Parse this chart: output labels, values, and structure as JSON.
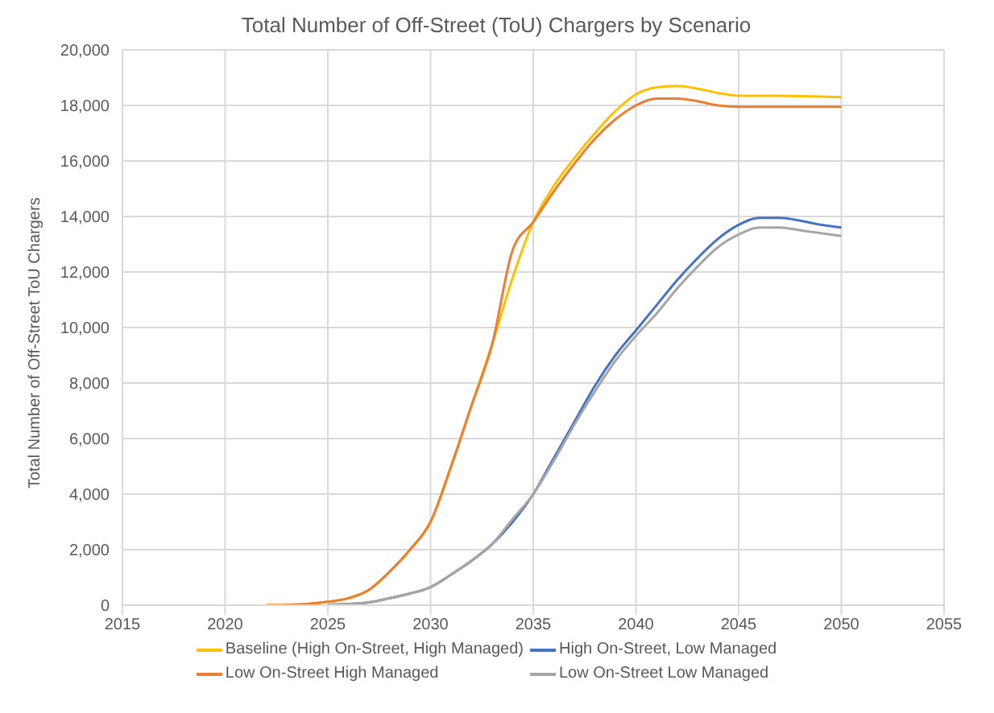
{
  "chart_data": {
    "type": "line",
    "title": "Total Number of Off-Street (ToU) Chargers by Scenario",
    "ylabel": "Total Number of Off-Street ToU Chargers",
    "x": [
      2022,
      2023,
      2024,
      2025,
      2026,
      2027,
      2028,
      2029,
      2030,
      2031,
      2032,
      2033,
      2034,
      2035,
      2036,
      2037,
      2038,
      2039,
      2040,
      2041,
      2042,
      2043,
      2044,
      2045,
      2046,
      2047,
      2048,
      2049,
      2050
    ],
    "series": [
      {
        "name": "Baseline (High On-Street, High Managed)",
        "color": "#ffc000",
        "values": [
          0,
          10,
          40,
          120,
          250,
          550,
          1200,
          2000,
          3000,
          5000,
          7200,
          9400,
          11800,
          13800,
          15100,
          16100,
          17000,
          17800,
          18400,
          18650,
          18700,
          18600,
          18450,
          18350,
          18350,
          18350,
          18330,
          18320,
          18300
        ]
      },
      {
        "name": "High On-Street, Low Managed",
        "color": "#4472c4",
        "values": [
          null,
          null,
          null,
          10,
          40,
          100,
          250,
          420,
          650,
          1100,
          1600,
          2200,
          3000,
          4000,
          5300,
          6600,
          7900,
          9000,
          9900,
          10800,
          11700,
          12500,
          13200,
          13700,
          13950,
          13950,
          13850,
          13700,
          13600
        ]
      },
      {
        "name": "Low On-Street High Managed",
        "color": "#ed7d31",
        "values": [
          0,
          10,
          40,
          120,
          250,
          550,
          1200,
          2000,
          3000,
          5000,
          7200,
          9400,
          12800,
          13800,
          14900,
          15900,
          16800,
          17500,
          18000,
          18250,
          18250,
          18150,
          18000,
          17950,
          17950,
          17950,
          17950,
          17950,
          17950
        ]
      },
      {
        "name": "Low On-Street Low Managed",
        "color": "#a5a5a5",
        "values": [
          null,
          null,
          null,
          10,
          40,
          100,
          250,
          420,
          650,
          1100,
          1600,
          2200,
          3100,
          4000,
          5200,
          6500,
          7700,
          8800,
          9700,
          10500,
          11400,
          12200,
          12900,
          13350,
          13600,
          13600,
          13500,
          13400,
          13300
        ]
      }
    ],
    "xlim": [
      2015,
      2055
    ],
    "xticks": [
      2015,
      2020,
      2025,
      2030,
      2035,
      2040,
      2045,
      2050,
      2055
    ],
    "ylim": [
      0,
      20000
    ],
    "yticks": [
      0,
      {
        "value": 2000,
        "label": "2,000"
      },
      {
        "value": 4000,
        "label": "4,000"
      },
      {
        "value": 6000,
        "label": "6,000"
      },
      {
        "value": 8000,
        "label": "8,000"
      },
      {
        "value": 10000,
        "label": "10,000"
      },
      {
        "value": 12000,
        "label": "12,000"
      },
      {
        "value": 14000,
        "label": "14,000"
      },
      {
        "value": 16000,
        "label": "16,000"
      },
      {
        "value": 18000,
        "label": "18,000"
      },
      {
        "value": 20000,
        "label": "20,000"
      }
    ],
    "grid": true,
    "legend": "bottom",
    "marker": "none",
    "line_style": "solid"
  }
}
